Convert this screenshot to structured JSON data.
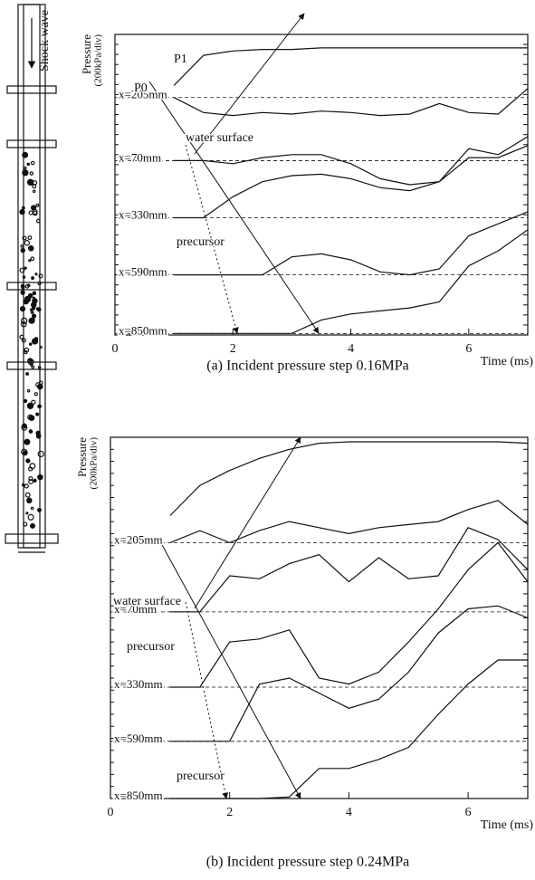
{
  "figure": {
    "label": "Shock wave"
  },
  "chart_data": [
    {
      "type": "line",
      "caption": "(a) Incident pressure step 0.16MPa",
      "xlabel": "Time (ms)",
      "ylabel": [
        "Pressure",
        "(200kPa/div)"
      ],
      "x": [
        0,
        1,
        1.5,
        2,
        2.5,
        3,
        3.5,
        4,
        4.5,
        5,
        5.5,
        6,
        6.5,
        7
      ],
      "xlim": [
        0,
        7
      ],
      "xticks": [
        0,
        2,
        4,
        6
      ],
      "ylim": [
        0,
        10
      ],
      "series": [
        {
          "color": "#111111",
          "values": [
            null,
            8.3,
            9.3,
            9.45,
            9.5,
            9.5,
            9.55,
            9.55,
            9.55,
            9.55,
            9.55,
            9.55,
            9.55,
            9.55
          ]
        },
        {
          "name": "x=205mm",
          "color": "#111111",
          "values": [
            null,
            7.9,
            7.4,
            7.3,
            7.4,
            7.35,
            7.45,
            7.4,
            7.3,
            7.35,
            7.7,
            7.4,
            7.35,
            8.2
          ]
        },
        {
          "name": "x=70mm",
          "color": "#111111",
          "values": [
            null,
            5.8,
            5.8,
            5.7,
            5.9,
            6.0,
            6.0,
            5.7,
            5.2,
            5.0,
            5.1,
            6.2,
            6.0,
            6.6
          ]
        },
        {
          "name": "x=330mm",
          "color": "#111111",
          "values": [
            null,
            3.9,
            3.9,
            4.6,
            5.1,
            5.3,
            5.35,
            5.2,
            4.9,
            4.8,
            5.1,
            5.9,
            5.9,
            6.3
          ]
        },
        {
          "name": "x=590mm",
          "color": "#111111",
          "values": [
            null,
            2.0,
            2.0,
            2.0,
            2.0,
            2.6,
            2.7,
            2.5,
            2.1,
            2.0,
            2.2,
            3.3,
            3.7,
            4.1
          ]
        },
        {
          "name": "x=850mm",
          "color": "#111111",
          "values": [
            null,
            0.05,
            0.05,
            0.05,
            0.05,
            0.05,
            0.5,
            0.7,
            0.8,
            0.9,
            1.1,
            2.3,
            2.8,
            3.5
          ]
        }
      ],
      "annotations": [
        "P0",
        "P1",
        "water surface",
        "precursor"
      ]
    },
    {
      "type": "line",
      "caption": "(b) Incident pressure step 0.24MPa",
      "xlabel": "Time (ms)",
      "ylabel": [
        "Pressure",
        "(200kPa/div)"
      ],
      "x": [
        0,
        1,
        1.5,
        2,
        2.5,
        3,
        3.5,
        4,
        4.5,
        5,
        5.5,
        6,
        6.5,
        7
      ],
      "xlim": [
        0,
        7
      ],
      "xticks": [
        0,
        2,
        4,
        6
      ],
      "ylim": [
        0,
        12
      ],
      "series": [
        {
          "color": "#111111",
          "values": [
            null,
            9.4,
            10.4,
            10.9,
            11.3,
            11.6,
            11.8,
            11.85,
            11.85,
            11.85,
            11.85,
            11.85,
            11.85,
            11.8
          ]
        },
        {
          "name": "x=205mm",
          "color": "#111111",
          "values": [
            null,
            8.5,
            8.9,
            8.5,
            8.9,
            9.2,
            9.0,
            8.8,
            9.0,
            9.1,
            9.2,
            9.6,
            9.9,
            9.1
          ]
        },
        {
          "name": "x=70mm",
          "color": "#111111",
          "values": [
            null,
            6.2,
            6.2,
            7.4,
            7.3,
            7.8,
            8.1,
            7.2,
            8.0,
            7.3,
            7.4,
            9.0,
            8.6,
            7.6
          ]
        },
        {
          "name": "x=330mm",
          "color": "#111111",
          "values": [
            null,
            3.7,
            3.7,
            5.2,
            5.3,
            5.6,
            4.0,
            3.8,
            4.2,
            5.2,
            6.3,
            7.6,
            8.5,
            7.2
          ]
        },
        {
          "name": "x=590mm",
          "color": "#111111",
          "values": [
            null,
            1.9,
            1.9,
            1.9,
            3.8,
            4.0,
            3.5,
            3.0,
            3.3,
            4.2,
            5.5,
            6.3,
            6.4,
            6.0
          ]
        },
        {
          "name": "x=850mm",
          "color": "#111111",
          "values": [
            null,
            0,
            0,
            0,
            0,
            0.05,
            1.0,
            1.0,
            1.3,
            1.7,
            2.8,
            3.8,
            4.6,
            4.6
          ]
        }
      ],
      "annotations": [
        "water surface",
        "precursor",
        "precursor"
      ]
    }
  ]
}
